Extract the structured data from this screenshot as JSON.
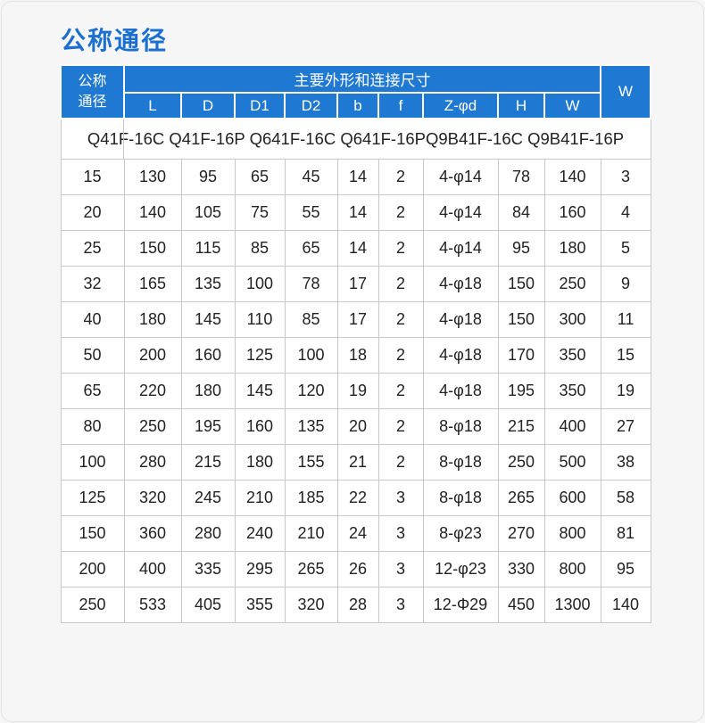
{
  "page": {
    "title": "公称通径"
  },
  "colors": {
    "header_blue": "#1f78d1",
    "title_blue": "#1a6fd1",
    "grid_gray": "#c8c8c8",
    "background": "#f5f6f5"
  },
  "table": {
    "header": {
      "col_nominal": "公称\n通径",
      "group_label": "主要外形和连接尺寸",
      "col_w_right": "W",
      "sub_columns": [
        "L",
        "D",
        "D1",
        "D2",
        "b",
        "f",
        "Z-φd",
        "H",
        "W"
      ]
    },
    "models_row": "Q41F-16C Q41F-16P Q641F-16C Q641F-16PQ9B41F-16C Q9B41F-16P",
    "rows": [
      [
        "15",
        "130",
        "95",
        "65",
        "45",
        "14",
        "2",
        "4-φ14",
        "78",
        "140",
        "3"
      ],
      [
        "20",
        "140",
        "105",
        "75",
        "55",
        "14",
        "2",
        "4-φ14",
        "84",
        "160",
        "4"
      ],
      [
        "25",
        "150",
        "115",
        "85",
        "65",
        "14",
        "2",
        "4-φ14",
        "95",
        "180",
        "5"
      ],
      [
        "32",
        "165",
        "135",
        "100",
        "78",
        "17",
        "2",
        "4-φ18",
        "150",
        "250",
        "9"
      ],
      [
        "40",
        "180",
        "145",
        "110",
        "85",
        "17",
        "2",
        "4-φ18",
        "150",
        "300",
        "11"
      ],
      [
        "50",
        "200",
        "160",
        "125",
        "100",
        "18",
        "2",
        "4-φ18",
        "170",
        "350",
        "15"
      ],
      [
        "65",
        "220",
        "180",
        "145",
        "120",
        "19",
        "2",
        "4-φ18",
        "195",
        "350",
        "19"
      ],
      [
        "80",
        "250",
        "195",
        "160",
        "135",
        "20",
        "2",
        "8-φ18",
        "215",
        "400",
        "27"
      ],
      [
        "100",
        "280",
        "215",
        "180",
        "155",
        "21",
        "2",
        "8-φ18",
        "250",
        "500",
        "38"
      ],
      [
        "125",
        "320",
        "245",
        "210",
        "185",
        "22",
        "3",
        "8-φ18",
        "265",
        "600",
        "58"
      ],
      [
        "150",
        "360",
        "280",
        "240",
        "210",
        "24",
        "3",
        "8-φ23",
        "270",
        "800",
        "81"
      ],
      [
        "200",
        "400",
        "335",
        "295",
        "265",
        "26",
        "3",
        "12-φ23",
        "330",
        "800",
        "95"
      ],
      [
        "250",
        "533",
        "405",
        "355",
        "320",
        "28",
        "3",
        "12-Φ29",
        "450",
        "1300",
        "140"
      ]
    ]
  }
}
